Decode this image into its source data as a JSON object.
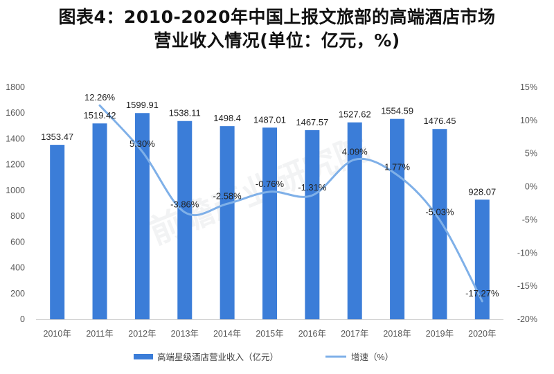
{
  "title_line1": "图表4：2010-2020年中国上报文旅部的高端酒店市场",
  "title_line2": "营业收入情况(单位：亿元，%)",
  "chart_data": {
    "type": "bar",
    "categories": [
      "2010年",
      "2011年",
      "2012年",
      "2013年",
      "2014年",
      "2015年",
      "2016年",
      "2017年",
      "2018年",
      "2019年",
      "2020年"
    ],
    "series": [
      {
        "name": "高端星级酒店营业收入（亿元）",
        "type": "bar",
        "axis": "left",
        "color": "#3b7dd8",
        "values": [
          1353.47,
          1519.42,
          1599.91,
          1538.11,
          1498.4,
          1487.01,
          1467.57,
          1527.62,
          1554.59,
          1476.45,
          928.07
        ],
        "labels": [
          "1353.47",
          "1519.42",
          "1599.91",
          "1538.11",
          "1498.4",
          "1487.01",
          "1467.57",
          "1527.62",
          "1554.59",
          "1476.45",
          "928.07"
        ]
      },
      {
        "name": "增速（%）",
        "type": "line",
        "axis": "right",
        "color": "#7fb0e8",
        "values": [
          null,
          12.26,
          5.3,
          -3.86,
          -2.58,
          -0.76,
          -1.31,
          4.09,
          1.77,
          -5.03,
          -17.27
        ],
        "labels": [
          "",
          "12.26%",
          "5.30%",
          "-3.86%",
          "-2.58%",
          "-0.76%",
          "-1.31%",
          "4.09%",
          "1.77%",
          "-5.03%",
          "-17.27%"
        ]
      }
    ],
    "left_axis": {
      "min": 0,
      "max": 1800,
      "ticks": [
        "0",
        "200",
        "400",
        "600",
        "800",
        "1000",
        "1200",
        "1400",
        "1600",
        "1800"
      ]
    },
    "right_axis": {
      "min": -20,
      "max": 15,
      "ticks": [
        "-20%",
        "-15%",
        "-10%",
        "-5%",
        "0%",
        "5%",
        "10%",
        "15%"
      ]
    },
    "legend": [
      "高端星级酒店营业收入（亿元）",
      "增速（%）"
    ],
    "legend_position": "bottom"
  },
  "watermark": "前瞻产业研究院"
}
